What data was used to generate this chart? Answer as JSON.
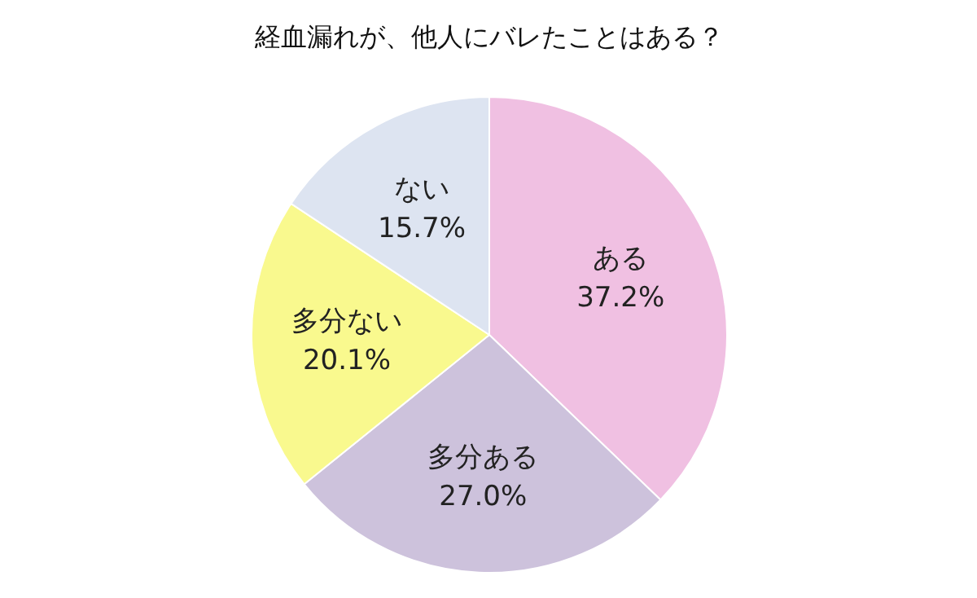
{
  "chart_data": {
    "type": "pie",
    "title": "経血漏れが、他人にバレたことはある？",
    "categories": [
      "ある",
      "多分ある",
      "多分ない",
      "ない"
    ],
    "values": [
      37.2,
      27.0,
      20.1,
      15.7
    ],
    "value_labels": [
      "37.2%",
      "27.0%",
      "20.1%",
      "15.7%"
    ],
    "colors": [
      "#f0c0e2",
      "#cdc2dc",
      "#f9f98e",
      "#dde4f1"
    ]
  }
}
